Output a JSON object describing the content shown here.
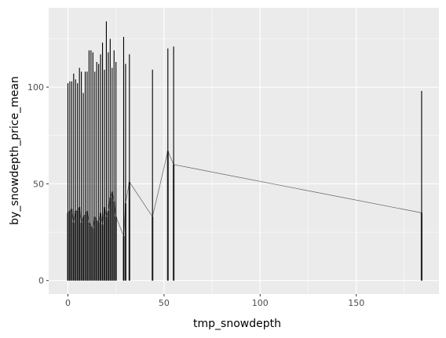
{
  "chart_data": {
    "type": "line",
    "title": "",
    "xlabel": "tmp_snowdepth",
    "ylabel": "by_snowdepth_price_mean",
    "xlim": [
      -10,
      193
    ],
    "ylim": [
      -7,
      141
    ],
    "x_ticks": [
      0,
      50,
      100,
      150
    ],
    "y_ticks": [
      0,
      50,
      100
    ],
    "grid": true,
    "legend": "none",
    "colors": {
      "panel": "#ebebeb",
      "grid": "#ffffff",
      "line": "#000000",
      "fill": "#595959",
      "tick_text": "#4d4d4d"
    },
    "series": [
      {
        "x": [
          0,
          1,
          2,
          3,
          4,
          5,
          6,
          7,
          8,
          9,
          10,
          11,
          12,
          13,
          14,
          15,
          16,
          17,
          18,
          19,
          20,
          21,
          22,
          23,
          24,
          25,
          29,
          30,
          32,
          44,
          52,
          55,
          184
        ],
        "y": [
          102,
          103,
          103,
          107,
          104,
          102,
          110,
          108,
          97,
          108,
          108,
          119,
          119,
          118,
          108,
          113,
          112,
          117,
          123,
          109,
          134,
          118,
          125,
          110,
          119,
          113,
          126,
          112,
          117,
          109,
          120,
          121,
          98
        ],
        "y_low": [
          35,
          36,
          37,
          30,
          36,
          36,
          38,
          30,
          33,
          34,
          36,
          30,
          28,
          27,
          33,
          31,
          30,
          35,
          29,
          38,
          33,
          36,
          43,
          46,
          41,
          33,
          23,
          40,
          51,
          33,
          67,
          60,
          35
        ]
      }
    ]
  }
}
